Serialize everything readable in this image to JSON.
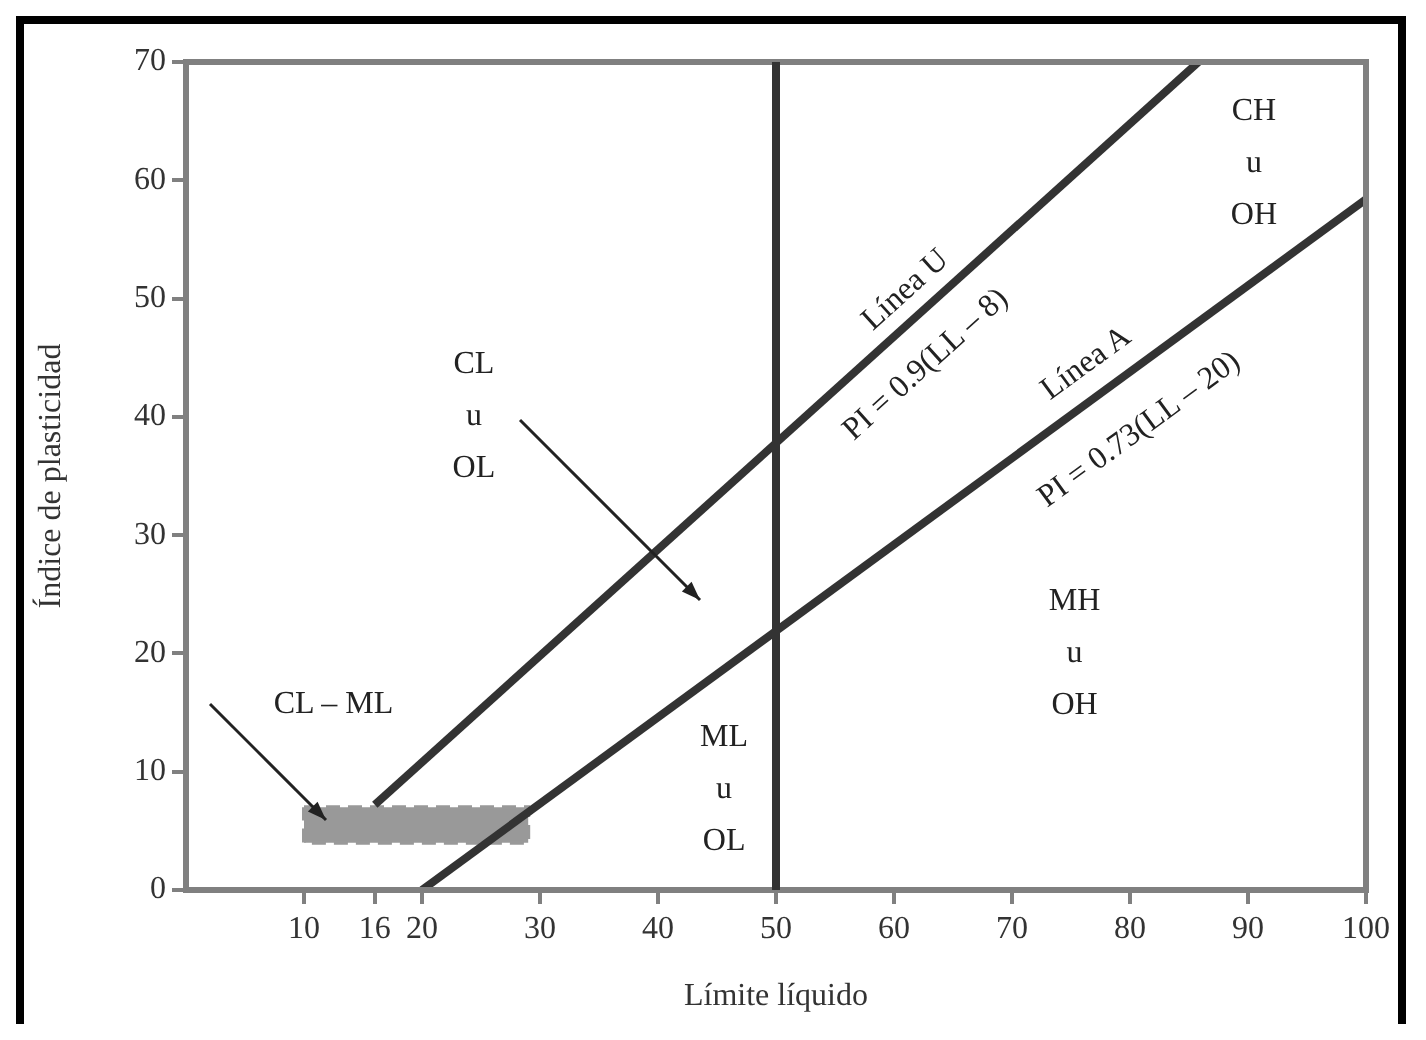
{
  "chart_data": {
    "type": "line",
    "xlabel": "Límite líquido",
    "ylabel": "Índice de plasticidad",
    "xlim": [
      0,
      100
    ],
    "xticks": [
      10,
      16,
      20,
      30,
      40,
      50,
      60,
      70,
      80,
      90,
      100
    ],
    "ylim": [
      0,
      70
    ],
    "yticks": [
      0,
      10,
      20,
      30,
      40,
      50,
      60,
      70
    ],
    "grid": false,
    "legend": false,
    "marker": "none",
    "series": [
      {
        "color": "#333333",
        "x": [
          16,
          85.8
        ],
        "values": [
          7.2,
          70
        ]
      },
      {
        "color": "#333333",
        "x": [
          20,
          100
        ],
        "values": [
          0,
          58.4
        ]
      },
      {
        "type": "area",
        "color": "#999999",
        "line_style": "dashed",
        "x": [
          10,
          29,
          29,
          10,
          10
        ],
        "values": [
          7,
          7,
          4,
          4,
          7
        ]
      }
    ],
    "ref_lines": [
      {
        "axis": "x",
        "value": 50,
        "color": "#333333"
      }
    ],
    "annotations": [
      "CL\nu\nOL",
      "CH\nu\nOH",
      "MH\nu\nOH",
      "ML\nu\nOL",
      "CL – ML",
      "Línea U",
      "PI = 0.9(LL – 8)",
      "Línea A",
      "PI = 0.73(LL – 20)"
    ]
  }
}
